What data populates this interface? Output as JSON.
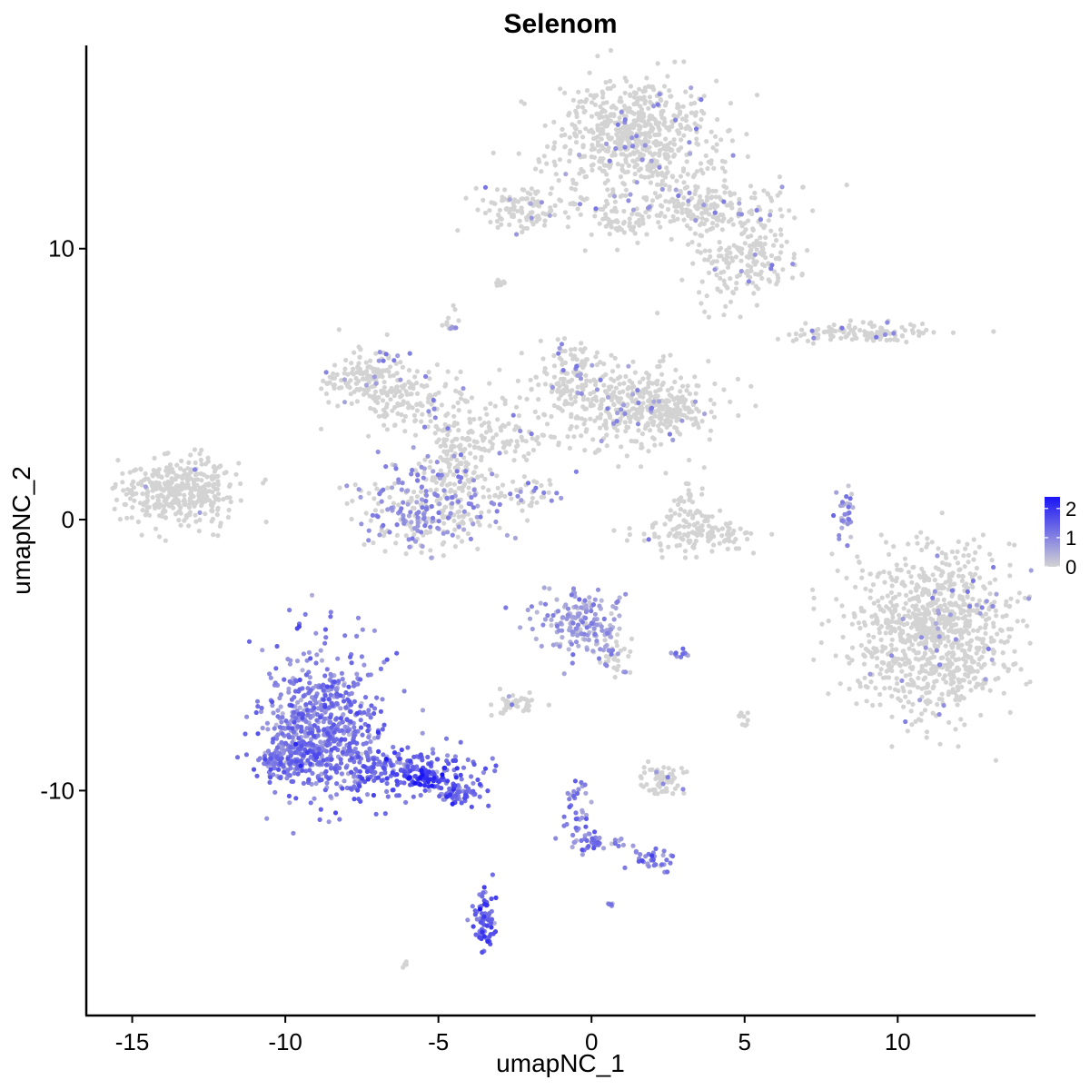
{
  "chart_data": {
    "type": "scatter",
    "title": "Selenom",
    "xlabel": "umapNC_1",
    "ylabel": "umapNC_2",
    "xlim": [
      -16.5,
      14.5
    ],
    "ylim": [
      -18.3,
      17.5
    ],
    "x_ticks": [
      -15,
      -10,
      -5,
      0,
      5,
      10
    ],
    "y_ticks": [
      -10,
      0,
      10
    ],
    "x_tick_labels": [
      "-15",
      "-10",
      "-5",
      "0",
      "5",
      "10"
    ],
    "y_tick_labels": [
      "-10",
      "0",
      "10"
    ],
    "color_scale": {
      "low_color": "#d3d3d3",
      "high_color": "#1a14f5",
      "min": 0,
      "max": 2.4,
      "breaks": [
        2,
        1,
        0
      ],
      "break_labels": [
        "2",
        "1",
        "0"
      ],
      "legend_position": "right"
    },
    "clusters": [
      {
        "id": "top-large",
        "x": 1.5,
        "y": 14.2,
        "sx": 1.3,
        "sy": 1.1,
        "n": 650,
        "expr": 0.05
      },
      {
        "id": "top-right-arm",
        "x": 4.0,
        "y": 11.5,
        "sx": 1.4,
        "sy": 0.6,
        "n": 220,
        "expr": 0.08
      },
      {
        "id": "top-right-lobe",
        "x": 5.6,
        "y": 9.7,
        "sx": 0.6,
        "sy": 0.5,
        "n": 90,
        "expr": 0.05
      },
      {
        "id": "top-arm-down",
        "x": 4.4,
        "y": 9.1,
        "sx": 0.7,
        "sy": 0.7,
        "n": 80,
        "expr": 0.04
      },
      {
        "id": "top-bridge",
        "x": 0.8,
        "y": 11.0,
        "sx": 0.9,
        "sy": 0.4,
        "n": 60,
        "expr": 0.02
      },
      {
        "id": "top-left-small",
        "x": -2.3,
        "y": 11.5,
        "sx": 0.7,
        "sy": 0.45,
        "n": 110,
        "expr": 0.1
      },
      {
        "id": "small-9",
        "x": -3.0,
        "y": 8.7,
        "sx": 0.12,
        "sy": 0.1,
        "n": 10,
        "expr": 0.0
      },
      {
        "id": "small-7",
        "x": -4.6,
        "y": 7.3,
        "sx": 0.15,
        "sy": 0.25,
        "n": 14,
        "expr": 0.1
      },
      {
        "id": "right-strip",
        "x": 9.0,
        "y": 6.9,
        "sx": 1.1,
        "sy": 0.18,
        "n": 120,
        "expr": 0.1
      },
      {
        "id": "left-island",
        "x": -13.5,
        "y": 1.0,
        "sx": 1.0,
        "sy": 0.6,
        "n": 380,
        "expr": 0.01
      },
      {
        "id": "mid-left",
        "x": -7.2,
        "y": 5.2,
        "sx": 0.9,
        "sy": 0.5,
        "n": 170,
        "expr": 0.06
      },
      {
        "id": "mid-left-arm",
        "x": -5.5,
        "y": 4.2,
        "sx": 1.1,
        "sy": 0.5,
        "n": 110,
        "expr": 0.08
      },
      {
        "id": "mid-center-right",
        "x": 1.2,
        "y": 4.2,
        "sx": 1.4,
        "sy": 0.8,
        "n": 360,
        "expr": 0.08
      },
      {
        "id": "mid-center-top",
        "x": -0.8,
        "y": 5.4,
        "sx": 0.5,
        "sy": 0.6,
        "n": 90,
        "expr": 0.1
      },
      {
        "id": "mid-right-blob",
        "x": 2.3,
        "y": 4.0,
        "sx": 0.6,
        "sy": 0.4,
        "n": 110,
        "expr": 0.05
      },
      {
        "id": "mid-stem",
        "x": -4.3,
        "y": 2.3,
        "sx": 0.6,
        "sy": 1.0,
        "n": 140,
        "expr": 0.05
      },
      {
        "id": "mid-stem-branch",
        "x": -2.7,
        "y": 3.0,
        "sx": 0.9,
        "sy": 0.4,
        "n": 70,
        "expr": 0.06
      },
      {
        "id": "mid-bottom-blob",
        "x": -5.3,
        "y": 0.4,
        "sx": 1.1,
        "sy": 0.8,
        "n": 300,
        "expr": 0.45
      },
      {
        "id": "mid-diagonal",
        "x": -2.0,
        "y": 1.0,
        "sx": 0.6,
        "sy": 0.3,
        "n": 40,
        "expr": 0.3
      },
      {
        "id": "center-small",
        "x": 3.5,
        "y": -0.5,
        "sx": 0.9,
        "sy": 0.4,
        "n": 130,
        "expr": 0.02
      },
      {
        "id": "center-small-top",
        "x": 3.2,
        "y": 0.7,
        "sx": 0.3,
        "sy": 0.3,
        "n": 25,
        "expr": 0.02
      },
      {
        "id": "thin-right",
        "x": 8.3,
        "y": 0.3,
        "sx": 0.15,
        "sy": 0.5,
        "n": 35,
        "expr": 0.7
      },
      {
        "id": "right-large",
        "x": 11.2,
        "y": -4.2,
        "sx": 1.3,
        "sy": 1.5,
        "n": 950,
        "expr": 0.04
      },
      {
        "id": "center-mid",
        "x": -0.4,
        "y": -3.8,
        "sx": 0.7,
        "sy": 0.6,
        "n": 170,
        "expr": 0.6
      },
      {
        "id": "center-mid-arm",
        "x": 0.8,
        "y": -4.9,
        "sx": 0.4,
        "sy": 0.4,
        "n": 40,
        "expr": 0.4
      },
      {
        "id": "center-small-2",
        "x": -2.6,
        "y": -6.8,
        "sx": 0.35,
        "sy": 0.2,
        "n": 40,
        "expr": 0.1
      },
      {
        "id": "lower-small",
        "x": 2.3,
        "y": -9.6,
        "sx": 0.4,
        "sy": 0.25,
        "n": 60,
        "expr": 0.05
      },
      {
        "id": "lower-tiny",
        "x": 2.8,
        "y": -5.0,
        "sx": 0.2,
        "sy": 0.1,
        "n": 10,
        "expr": 0.8
      },
      {
        "id": "lower-tiny-2",
        "x": 5.0,
        "y": -7.3,
        "sx": 0.12,
        "sy": 0.2,
        "n": 10,
        "expr": 0.0
      },
      {
        "id": "big-purple",
        "x": -8.7,
        "y": -7.7,
        "sx": 1.0,
        "sy": 1.3,
        "n": 650,
        "expr": 1.05
      },
      {
        "id": "big-purple-left",
        "x": -9.8,
        "y": -8.7,
        "sx": 0.45,
        "sy": 0.45,
        "n": 140,
        "expr": 1.05
      },
      {
        "id": "big-purple-tail",
        "x": -6.0,
        "y": -9.2,
        "sx": 1.1,
        "sy": 0.45,
        "n": 190,
        "expr": 1.4
      },
      {
        "id": "big-purple-tip",
        "x": -4.3,
        "y": -10.1,
        "sx": 0.45,
        "sy": 0.2,
        "n": 60,
        "expr": 1.3
      },
      {
        "id": "dense-spot",
        "x": -5.5,
        "y": -9.6,
        "sx": 0.3,
        "sy": 0.2,
        "n": 35,
        "expr": 2.1
      },
      {
        "id": "lower-trail",
        "x": -0.4,
        "y": -10.8,
        "sx": 0.25,
        "sy": 0.6,
        "n": 40,
        "expr": 1.0
      },
      {
        "id": "lower-trail-bot",
        "x": -0.1,
        "y": -11.9,
        "sx": 0.25,
        "sy": 0.2,
        "n": 25,
        "expr": 1.1
      },
      {
        "id": "lower-trail-right",
        "x": 2.1,
        "y": -12.5,
        "sx": 0.35,
        "sy": 0.2,
        "n": 35,
        "expr": 1.0
      },
      {
        "id": "lower-trail-mid",
        "x": 0.9,
        "y": -12.0,
        "sx": 0.3,
        "sy": 0.1,
        "n": 10,
        "expr": 0.8
      },
      {
        "id": "bottom-cluster",
        "x": -3.5,
        "y": -14.8,
        "sx": 0.2,
        "sy": 0.6,
        "n": 70,
        "expr": 1.4
      },
      {
        "id": "bottom-tiny",
        "x": 0.6,
        "y": -14.2,
        "sx": 0.08,
        "sy": 0.05,
        "n": 6,
        "expr": 0.9
      },
      {
        "id": "bottom-left-tiny",
        "x": -6.1,
        "y": -16.4,
        "sx": 0.06,
        "sy": 0.05,
        "n": 4,
        "expr": 0.1
      }
    ]
  }
}
